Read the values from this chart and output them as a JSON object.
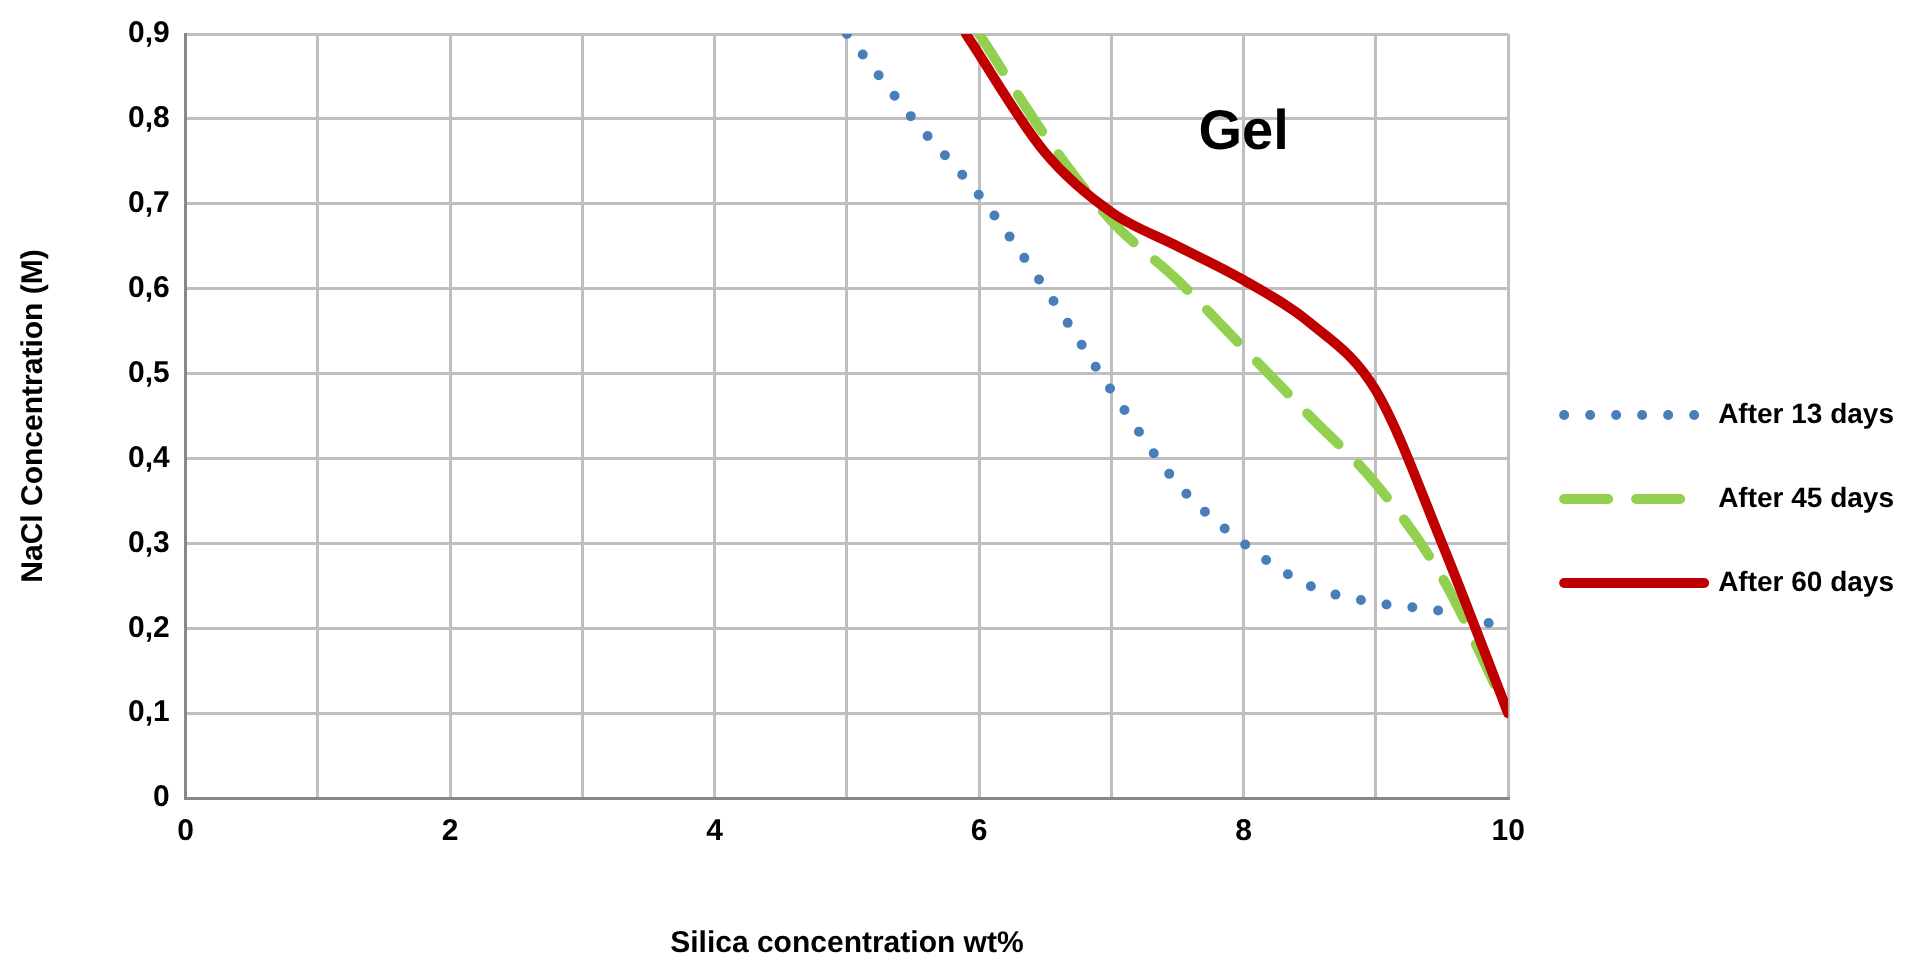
{
  "chart_data": {
    "type": "line",
    "xlabel": "Silica concentration wt%",
    "ylabel": "NaCl Concentration (M)",
    "xlim": [
      0,
      10
    ],
    "xticks": [
      0,
      {
        "value": 1,
        "label": null
      },
      2,
      {
        "value": 3,
        "label": null
      },
      4,
      {
        "value": 5,
        "label": null
      },
      6,
      {
        "value": 7,
        "label": null
      },
      8,
      {
        "value": 9,
        "label": null
      },
      10
    ],
    "ylim": [
      0,
      0.9
    ],
    "yticks": [
      0,
      {
        "value": 0.1,
        "label": "0,1"
      },
      {
        "value": 0.2,
        "label": "0,2"
      },
      {
        "value": 0.3,
        "label": "0,3"
      },
      {
        "value": 0.4,
        "label": "0,4"
      },
      {
        "value": 0.5,
        "label": "0,5"
      },
      {
        "value": 0.6,
        "label": "0,6"
      },
      {
        "value": 0.7,
        "label": "0,7"
      },
      {
        "value": 0.8,
        "label": "0,8"
      },
      {
        "value": 0.9,
        "label": "0,9"
      }
    ],
    "grid": true,
    "legend": "right",
    "marker": "none",
    "annotations": [
      "Gel"
    ],
    "series": [
      {
        "name": "After 13 days",
        "color": "#4a7ebb",
        "line_style": "dotted",
        "x": [
          5,
          5.5,
          6,
          6.5,
          7,
          7.5,
          8,
          8.5,
          9,
          9.5,
          10
        ],
        "values": [
          0.9,
          0.8,
          0.71,
          0.6,
          0.48,
          0.37,
          0.3,
          0.25,
          0.23,
          0.22,
          0.2
        ]
      },
      {
        "name": "After 45 days",
        "color": "#92d050",
        "line_style": "dashed",
        "x": [
          6,
          6.5,
          7,
          7.5,
          8,
          8.5,
          9,
          9.5,
          10
        ],
        "values": [
          0.9,
          0.78,
          0.68,
          0.61,
          0.53,
          0.45,
          0.37,
          0.26,
          0.1
        ]
      },
      {
        "name": "After 60 days",
        "color": "#c00000",
        "line_style": "solid",
        "x": [
          5.9,
          6.5,
          7,
          7.5,
          8,
          8.5,
          9,
          9.5,
          10
        ],
        "values": [
          0.9,
          0.76,
          0.69,
          0.65,
          0.61,
          0.56,
          0.48,
          0.3,
          0.1
        ]
      }
    ]
  }
}
